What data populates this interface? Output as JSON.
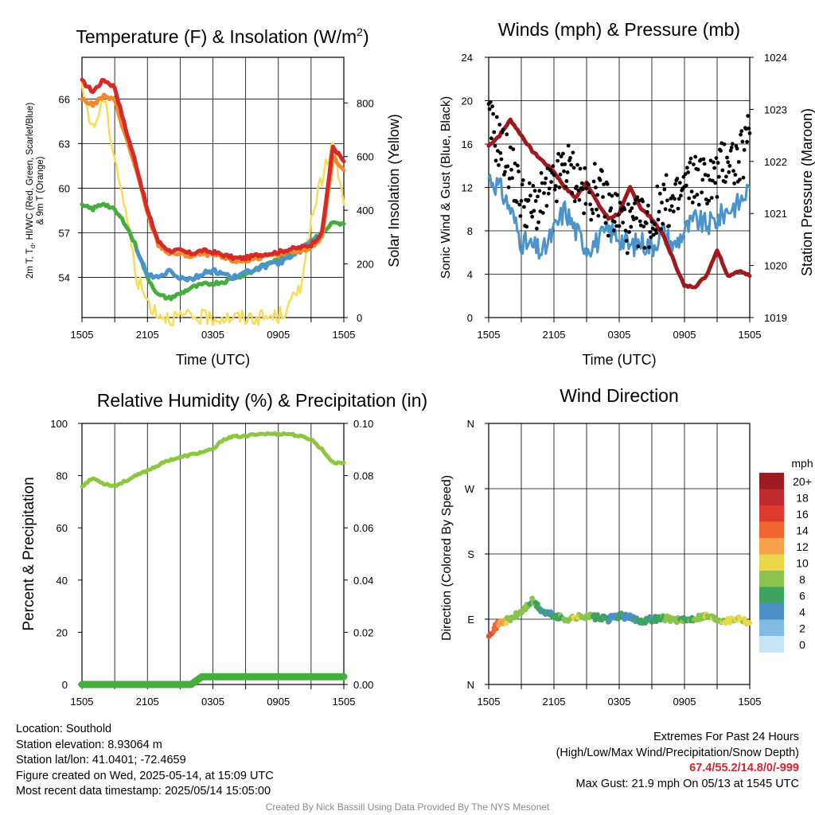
{
  "panels": {
    "temp": {
      "title": "Temperature (F) & Insolation (W/m²)",
      "title_main": "Temperature (F) & Insolation (W/m",
      "title_sup": "2",
      "title_end": ")",
      "ylabel_line1": "2m T, T",
      "ylabel_sub": "d",
      "ylabel_line1_rest": ", HI/WC (Red, Green, Scarlet/Blue)",
      "ylabel_line2": "& 9m T (Orange)",
      "y2label": "Solar Insolation (Yellow)",
      "xlabel": "Time (UTC)"
    },
    "wind": {
      "title": "Winds (mph) & Pressure (mb)",
      "ylabel": "Sonic Wind & Gust (Blue, Black)",
      "y2label": "Station Pressure (Maroon)",
      "xlabel": "Time (UTC)"
    },
    "rh": {
      "title": "Relative Humidity (%) & Precipitation (in)",
      "ylabel": "Percent & Precipitation"
    },
    "dir": {
      "title": "Wind Direction",
      "ylabel": "Direction (Colored By Speed)",
      "legend_title": "mph"
    }
  },
  "chart_data": [
    {
      "type": "line",
      "title": "Temperature (F) & Insolation (W/m2)",
      "xlabel": "Time (UTC)",
      "x": [
        0,
        1,
        2,
        3,
        4,
        5,
        6,
        7,
        8,
        9,
        10,
        11,
        12,
        13,
        14,
        15,
        16,
        17,
        18,
        19,
        20,
        21,
        22,
        23,
        24
      ],
      "xticks": [
        "1505",
        "2105",
        "0305",
        "0905",
        "1505"
      ],
      "ylim": [
        51.3,
        68.8
      ],
      "yticks": [
        54,
        57,
        60,
        63,
        66
      ],
      "y2lim": [
        0,
        970
      ],
      "y2ticks": [
        0,
        200,
        400,
        600,
        800
      ],
      "series": [
        {
          "name": "2m T",
          "color": "#d42a28",
          "axis": "left",
          "values": [
            67.2,
            66.5,
            67.3,
            66.8,
            64.0,
            61.5,
            58.5,
            56.4,
            55.8,
            55.8,
            55.6,
            55.8,
            55.7,
            55.5,
            55.3,
            55.3,
            55.5,
            55.6,
            55.7,
            55.9,
            56.0,
            56.2,
            57.0,
            62.8,
            61.8
          ]
        },
        {
          "name": "9m T",
          "color": "#f28a2c",
          "axis": "left",
          "values": [
            66.0,
            65.6,
            66.2,
            65.9,
            63.5,
            61.2,
            58.3,
            56.2,
            55.6,
            55.6,
            55.4,
            55.6,
            55.5,
            55.3,
            55.1,
            55.1,
            55.3,
            55.4,
            55.5,
            55.7,
            55.8,
            56.0,
            56.7,
            62.1,
            61.2
          ]
        },
        {
          "name": "Td",
          "color": "#46ad3f",
          "axis": "left",
          "values": [
            58.8,
            58.6,
            59.0,
            58.5,
            57.6,
            56.0,
            54.0,
            52.8,
            52.6,
            52.9,
            53.3,
            53.5,
            53.6,
            53.7,
            54.0,
            54.2,
            54.6,
            54.9,
            55.2,
            55.6,
            56.0,
            56.5,
            57.0,
            57.7,
            57.6
          ]
        },
        {
          "name": "HI/WC",
          "color": "#4b93cb",
          "axis": "left",
          "values": [
            null,
            null,
            null,
            null,
            null,
            55.8,
            54.2,
            54.0,
            54.5,
            54.0,
            53.9,
            54.2,
            54.5,
            54.2,
            54.0,
            54.3,
            54.6,
            54.8,
            55.0,
            55.3,
            55.8,
            56.3,
            57.0,
            null,
            null
          ]
        },
        {
          "name": "Solar Insolation",
          "color": "#f5dc5a",
          "axis": "right",
          "values": [
            850,
            700,
            820,
            600,
            400,
            150,
            60,
            15,
            0,
            0,
            0,
            0,
            0,
            0,
            0,
            0,
            0,
            0,
            5,
            40,
            120,
            350,
            520,
            650,
            420
          ]
        }
      ]
    },
    {
      "type": "line",
      "title": "Winds (mph) & Pressure (mb)",
      "xlabel": "Time (UTC)",
      "x": [
        0,
        1,
        2,
        3,
        4,
        5,
        6,
        7,
        8,
        9,
        10,
        11,
        12,
        13,
        14,
        15,
        16,
        17,
        18,
        19,
        20,
        21,
        22,
        23,
        24
      ],
      "xticks": [
        "1505",
        "2105",
        "0305",
        "0905",
        "1505"
      ],
      "ylim": [
        0,
        24
      ],
      "yticks": [
        0,
        4,
        8,
        12,
        16,
        20,
        24
      ],
      "y2lim": [
        1019,
        1024
      ],
      "y2ticks": [
        1019,
        1020,
        1021,
        1022,
        1023,
        1024
      ],
      "series": [
        {
          "name": "Sonic Wind",
          "color": "#4b93cb",
          "axis": "left",
          "values": [
            13,
            12,
            10,
            7,
            6.5,
            6,
            8,
            10,
            8,
            6.5,
            7,
            8,
            7.5,
            6.5,
            7,
            6.5,
            8,
            6.5,
            8,
            9,
            8.5,
            9,
            10,
            10.5,
            12
          ]
        },
        {
          "name": "Gust",
          "color": "#000000",
          "axis": "left",
          "values": [
            18,
            16,
            14,
            11,
            10,
            11,
            12,
            14,
            13,
            11,
            12,
            10,
            9.5,
            8,
            9,
            8.5,
            11,
            10,
            12,
            13,
            12.5,
            13,
            15,
            14,
            17
          ]
        },
        {
          "name": "Station Pressure",
          "color": "#9e1a1e",
          "axis": "right",
          "values": [
            1022.3,
            1022.5,
            1022.8,
            1022.5,
            1022.2,
            1022.0,
            1021.8,
            1021.5,
            1021.3,
            1021.6,
            1021.2,
            1020.9,
            1021.0,
            1021.5,
            1021.1,
            1020.9,
            1020.6,
            1020.1,
            1019.6,
            1019.6,
            1019.8,
            1020.3,
            1019.8,
            1019.9,
            1019.8
          ]
        }
      ]
    },
    {
      "type": "line",
      "title": "Relative Humidity (%) & Precipitation (in)",
      "x": [
        0,
        1,
        2,
        3,
        4,
        5,
        6,
        7,
        8,
        9,
        10,
        11,
        12,
        13,
        14,
        15,
        16,
        17,
        18,
        19,
        20,
        21,
        22,
        23,
        24
      ],
      "xticks": [
        "1505",
        "2105",
        "0305",
        "0905",
        "1505"
      ],
      "ylim": [
        0,
        100
      ],
      "yticks": [
        0,
        20,
        40,
        60,
        80,
        100
      ],
      "y2lim": [
        0,
        0.1
      ],
      "y2ticks": [
        "0.00",
        "0.02",
        "0.04",
        "0.06",
        "0.08",
        "0.10"
      ],
      "series": [
        {
          "name": "Relative Humidity",
          "color": "#8dc63f",
          "axis": "left",
          "values": [
            76,
            79,
            77,
            76,
            78,
            80,
            82,
            84,
            86,
            87,
            88,
            89,
            90,
            94,
            95,
            95,
            96,
            96,
            96,
            96,
            95,
            94,
            90,
            85,
            85
          ]
        },
        {
          "name": "Precipitation",
          "color": "#46ad3f",
          "axis": "right",
          "values": [
            0,
            0,
            0,
            0,
            0,
            0,
            0,
            0,
            0,
            0,
            0,
            0.003,
            0.003,
            0.003,
            0.003,
            0.003,
            0.003,
            0.003,
            0.003,
            0.003,
            0.003,
            0.003,
            0.003,
            0.003,
            0.003
          ]
        }
      ]
    },
    {
      "type": "scatter",
      "title": "Wind Direction",
      "x": [
        0,
        1,
        2,
        3,
        4,
        5,
        6,
        7,
        8,
        9,
        10,
        11,
        12,
        13,
        14,
        15,
        16,
        17,
        18,
        19,
        20,
        21,
        22,
        23,
        24
      ],
      "xticks": [
        "1505",
        "2105",
        "0305",
        "0905",
        "1505"
      ],
      "ylim": [
        0,
        360
      ],
      "yticks": [
        "N",
        "E",
        "S",
        "W",
        "N"
      ],
      "series": [
        {
          "name": "Direction",
          "values": [
            70,
            85,
            90,
            100,
            115,
            100,
            95,
            90,
            92,
            95,
            92,
            90,
            95,
            92,
            88,
            90,
            92,
            90,
            88,
            92,
            95,
            90,
            88,
            92,
            85
          ],
          "speeds": [
            15,
            13,
            8,
            8,
            7,
            5,
            6,
            7,
            9,
            8,
            6,
            5,
            5,
            4,
            6,
            5,
            7,
            8,
            6,
            7,
            9,
            8,
            10,
            9,
            10
          ]
        }
      ],
      "legend": {
        "title": "mph",
        "labels": [
          "20+",
          "18",
          "16",
          "14",
          "12",
          "10",
          "8",
          "6",
          "4",
          "2",
          "0"
        ],
        "colors": [
          "#9c1c1f",
          "#c0292e",
          "#e0382e",
          "#ef6630",
          "#f8a14a",
          "#e8d84a",
          "#8ac44d",
          "#3ea360",
          "#4b8fc6",
          "#80bbe3",
          "#c7e4f4"
        ]
      }
    }
  ],
  "info": {
    "location": "Location: Southold",
    "elevation": "Station elevation: 8.93064 m",
    "latlon": "Station lat/lon: 41.0401; -72.4659",
    "created": "Figure created on Wed, 2025-05-14, at 15:09 UTC",
    "recent": "Most recent data timestamp: 2025/05/14 15:05:00"
  },
  "extremes": {
    "title": "Extremes For Past 24 Hours",
    "subtitle": "(High/Low/Max Wind/Precipitation/Snow Depth)",
    "values": "67.4/55.2/14.8/0/-999",
    "max_gust": "Max Gust: 21.9 mph On 05/13 at 1545 UTC"
  },
  "credit": "Created By Nick Bassill Using Data Provided By The NYS Mesonet"
}
